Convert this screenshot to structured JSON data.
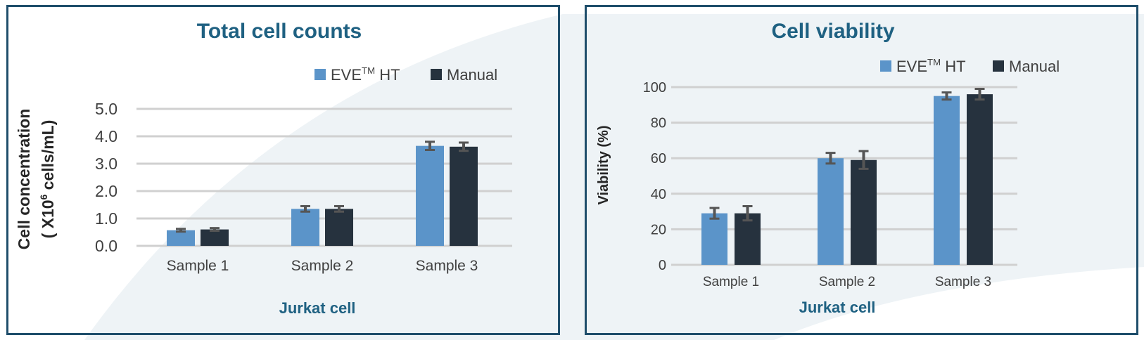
{
  "colors": {
    "eve": "#5b94c9",
    "manual": "#26323e",
    "border": "#1f4e6b",
    "title": "#1f6182",
    "grid": "#d0d0d0",
    "error_bar": "#555555",
    "background_swoosh": "#eef3f6"
  },
  "chart_data": [
    {
      "type": "bar",
      "title": "Total cell counts",
      "xlabel": "Jurkat cell",
      "ylabel_line1": "Cell concentration",
      "ylabel_line2_pre": "( X10",
      "ylabel_line2_sup": "6",
      "ylabel_line2_post": " cells/mL)",
      "categories": [
        "Sample 1",
        "Sample 2",
        "Sample 3"
      ],
      "ylim": [
        0,
        5
      ],
      "yticks": [
        "0.0",
        "1.0",
        "2.0",
        "3.0",
        "4.0",
        "5.0"
      ],
      "ytick_values": [
        0,
        1,
        2,
        3,
        4,
        5
      ],
      "grid": true,
      "legend_position": "top-right",
      "series": [
        {
          "name_pre": "EVE",
          "name_sup": "TM",
          "name_post": " HT",
          "color_key": "eve",
          "values": [
            0.57,
            1.35,
            3.65
          ],
          "errors": [
            0.05,
            0.1,
            0.15
          ]
        },
        {
          "name_pre": "Manual",
          "name_sup": "",
          "name_post": "",
          "color_key": "manual",
          "values": [
            0.6,
            1.35,
            3.62
          ],
          "errors": [
            0.05,
            0.1,
            0.15
          ]
        }
      ]
    },
    {
      "type": "bar",
      "title": "Cell viability",
      "xlabel": "Jurkat cell",
      "ylabel_line1": "Viability (%)",
      "categories": [
        "Sample 1",
        "Sample 2",
        "Sample 3"
      ],
      "ylim": [
        0,
        100
      ],
      "yticks": [
        "0",
        "20",
        "40",
        "60",
        "80",
        "100"
      ],
      "ytick_values": [
        0,
        20,
        40,
        60,
        80,
        100
      ],
      "grid": true,
      "legend_position": "top-right",
      "series": [
        {
          "name_pre": "EVE",
          "name_sup": "TM",
          "name_post": " HT",
          "color_key": "eve",
          "values": [
            29,
            60,
            95
          ],
          "errors": [
            3,
            3,
            2
          ]
        },
        {
          "name_pre": "Manual",
          "name_sup": "",
          "name_post": "",
          "color_key": "manual",
          "values": [
            29,
            59,
            96
          ],
          "errors": [
            4,
            5,
            3
          ]
        }
      ]
    }
  ]
}
